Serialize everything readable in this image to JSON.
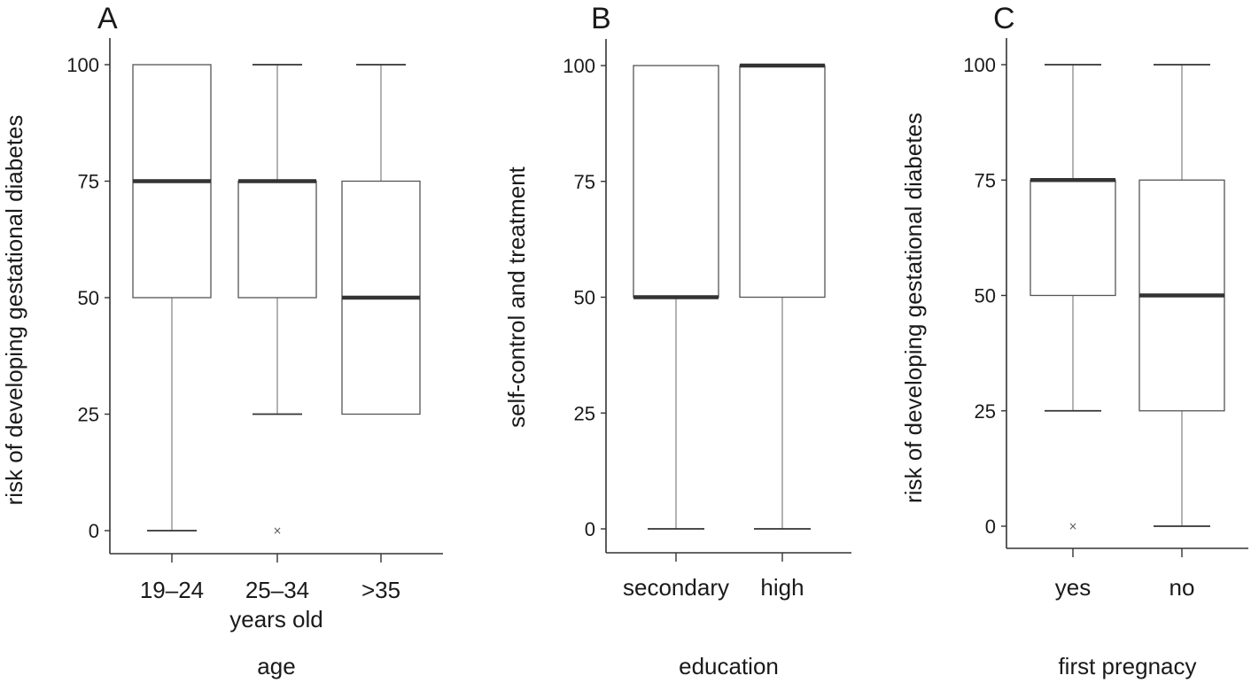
{
  "chart_data": [
    {
      "type": "box",
      "panel_label": "A",
      "xlabel": "age",
      "ylabel": "risk of developing gestational diabetes",
      "ylim": [
        0,
        100
      ],
      "yticks": [
        0,
        25,
        50,
        75,
        100
      ],
      "ytick_labels": [
        "0",
        "25",
        "50",
        "75",
        "100"
      ],
      "categories": [
        "19–24",
        "25–34",
        ">35"
      ],
      "category_note": "years old",
      "boxes": [
        {
          "category": "19–24",
          "whisker_low": 0,
          "q1": 50,
          "median": 75,
          "q3": 100,
          "whisker_high": 100,
          "outliers": []
        },
        {
          "category": "25–34",
          "whisker_low": 25,
          "q1": 50,
          "median": 75,
          "q3": 75,
          "whisker_high": 100,
          "outliers": [
            0
          ]
        },
        {
          "category": ">35",
          "whisker_low": 25,
          "q1": 25,
          "median": 50,
          "q3": 75,
          "whisker_high": 100,
          "outliers": []
        }
      ]
    },
    {
      "type": "box",
      "panel_label": "B",
      "xlabel": "education",
      "ylabel": "self-control and treatment",
      "ylim": [
        0,
        100
      ],
      "yticks": [
        0,
        25,
        50,
        75,
        100
      ],
      "ytick_labels": [
        "0",
        "25",
        "50",
        "75",
        "100"
      ],
      "categories": [
        "secondary",
        "high"
      ],
      "category_note": "",
      "boxes": [
        {
          "category": "secondary",
          "whisker_low": 0,
          "q1": 50,
          "median": 50,
          "q3": 100,
          "whisker_high": 100,
          "outliers": []
        },
        {
          "category": "high",
          "whisker_low": 0,
          "q1": 50,
          "median": 100,
          "q3": 100,
          "whisker_high": 100,
          "outliers": []
        }
      ]
    },
    {
      "type": "box",
      "panel_label": "C",
      "xlabel": "first pregnacy",
      "ylabel": "risk of developing gestational diabetes",
      "ylim": [
        0,
        100
      ],
      "yticks": [
        0,
        25,
        50,
        75,
        100
      ],
      "ytick_labels": [
        "0",
        "25",
        "50",
        "75",
        "100"
      ],
      "categories": [
        "yes",
        "no"
      ],
      "category_note": "",
      "boxes": [
        {
          "category": "yes",
          "whisker_low": 25,
          "q1": 50,
          "median": 75,
          "q3": 75,
          "whisker_high": 100,
          "outliers": [
            0
          ]
        },
        {
          "category": "no",
          "whisker_low": 0,
          "q1": 25,
          "median": 50,
          "q3": 75,
          "whisker_high": 100,
          "outliers": []
        }
      ]
    }
  ]
}
